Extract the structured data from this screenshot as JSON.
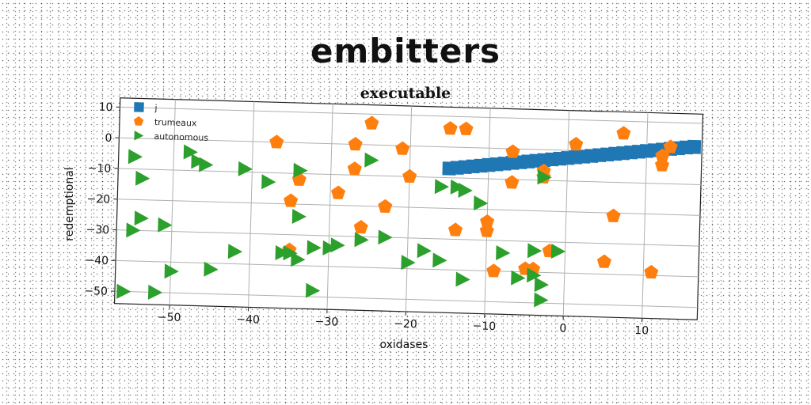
{
  "page": {
    "title": "embitters"
  },
  "chart_data": {
    "type": "scatter",
    "title": "executable",
    "xlabel": "oxidases",
    "ylabel": "redemptional",
    "xlim": [
      -57,
      17
    ],
    "ylim": [
      -54,
      13
    ],
    "xticks": [
      -50,
      -40,
      -30,
      -20,
      -10,
      0,
      10
    ],
    "xtick_labels": [
      "−50",
      "−40",
      "−30",
      "−20",
      "−10",
      "0",
      "10"
    ],
    "yticks": [
      10,
      0,
      -10,
      -20,
      -30,
      -40,
      -50
    ],
    "ytick_labels": [
      "10",
      "0",
      "−10",
      "−20",
      "−30",
      "−40",
      "−50"
    ],
    "grid": true,
    "legend_position": "top-left",
    "series": [
      {
        "name": "j",
        "marker": "square",
        "color": "#1f77b4",
        "x": [
          -15,
          -14,
          -13,
          -12,
          -11,
          -10,
          -9,
          -8,
          -7,
          -6,
          -5,
          -4,
          -3,
          -2,
          -1,
          0,
          1,
          2,
          3,
          4,
          5,
          6,
          7,
          8,
          9,
          10,
          11,
          12,
          13,
          14,
          15,
          16
        ],
        "y": [
          -7,
          -6.7,
          -6.4,
          -6.1,
          -5.8,
          -5.5,
          -5.2,
          -4.9,
          -4.6,
          -4.3,
          -4,
          -3.7,
          -3.4,
          -3.1,
          -2.8,
          -2.5,
          -2.2,
          -1.9,
          -1.6,
          -1.3,
          -1,
          -0.7,
          -0.4,
          -0.1,
          0.2,
          0.5,
          0.8,
          1.1,
          1.4,
          1.7,
          2,
          2.3
        ]
      },
      {
        "name": "trumeaux",
        "marker": "pentagon",
        "color": "#ff7f0e",
        "x": [
          -25,
          -15,
          -13,
          -37,
          -27,
          -21,
          -7,
          1,
          7,
          13,
          -27,
          -20,
          -7,
          -3,
          -3,
          12,
          12,
          -34,
          -29,
          -35,
          -23,
          -26,
          -14,
          -10,
          -10,
          -35,
          -9,
          -5,
          -4,
          -2,
          5,
          6,
          11
        ],
        "y": [
          7,
          6,
          6,
          0,
          0,
          -1,
          -1,
          2,
          6,
          2,
          -8,
          -10,
          -11,
          -7,
          -9,
          -1,
          -4,
          -12,
          -16,
          -19,
          -20,
          -27,
          -27,
          -24,
          -27,
          -35,
          -40,
          -39,
          -39,
          -33,
          -36,
          -21,
          -39
        ]
      },
      {
        "name": "autonomous",
        "marker": "triangle",
        "color": "#2ca02c",
        "x": [
          -48,
          -47,
          -46,
          -55,
          -41,
          -38,
          -25,
          -54,
          -34,
          -14,
          -16,
          -13,
          -11,
          -54,
          -55,
          -51,
          -34,
          -32,
          -30,
          -23,
          -18,
          -29,
          -26,
          -20,
          -16,
          -42,
          -36,
          -35,
          -34,
          -8,
          -50,
          -45,
          -13,
          -6,
          -56,
          -52,
          -32,
          -3,
          -4,
          -4,
          -1,
          -3,
          -3
        ],
        "y": [
          -4,
          -7,
          -8,
          -6,
          -9,
          -13,
          -5,
          -13,
          -9,
          -13,
          -13,
          -14,
          -18,
          -26,
          -30,
          -28,
          -24,
          -34,
          -34,
          -30,
          -34,
          -33,
          -31,
          -38,
          -37,
          -36,
          -36,
          -36,
          -38,
          -34,
          -43,
          -42,
          -43,
          -42,
          -50,
          -50,
          -48,
          -9,
          -33,
          -41,
          -33,
          -44,
          -49
        ]
      }
    ]
  }
}
